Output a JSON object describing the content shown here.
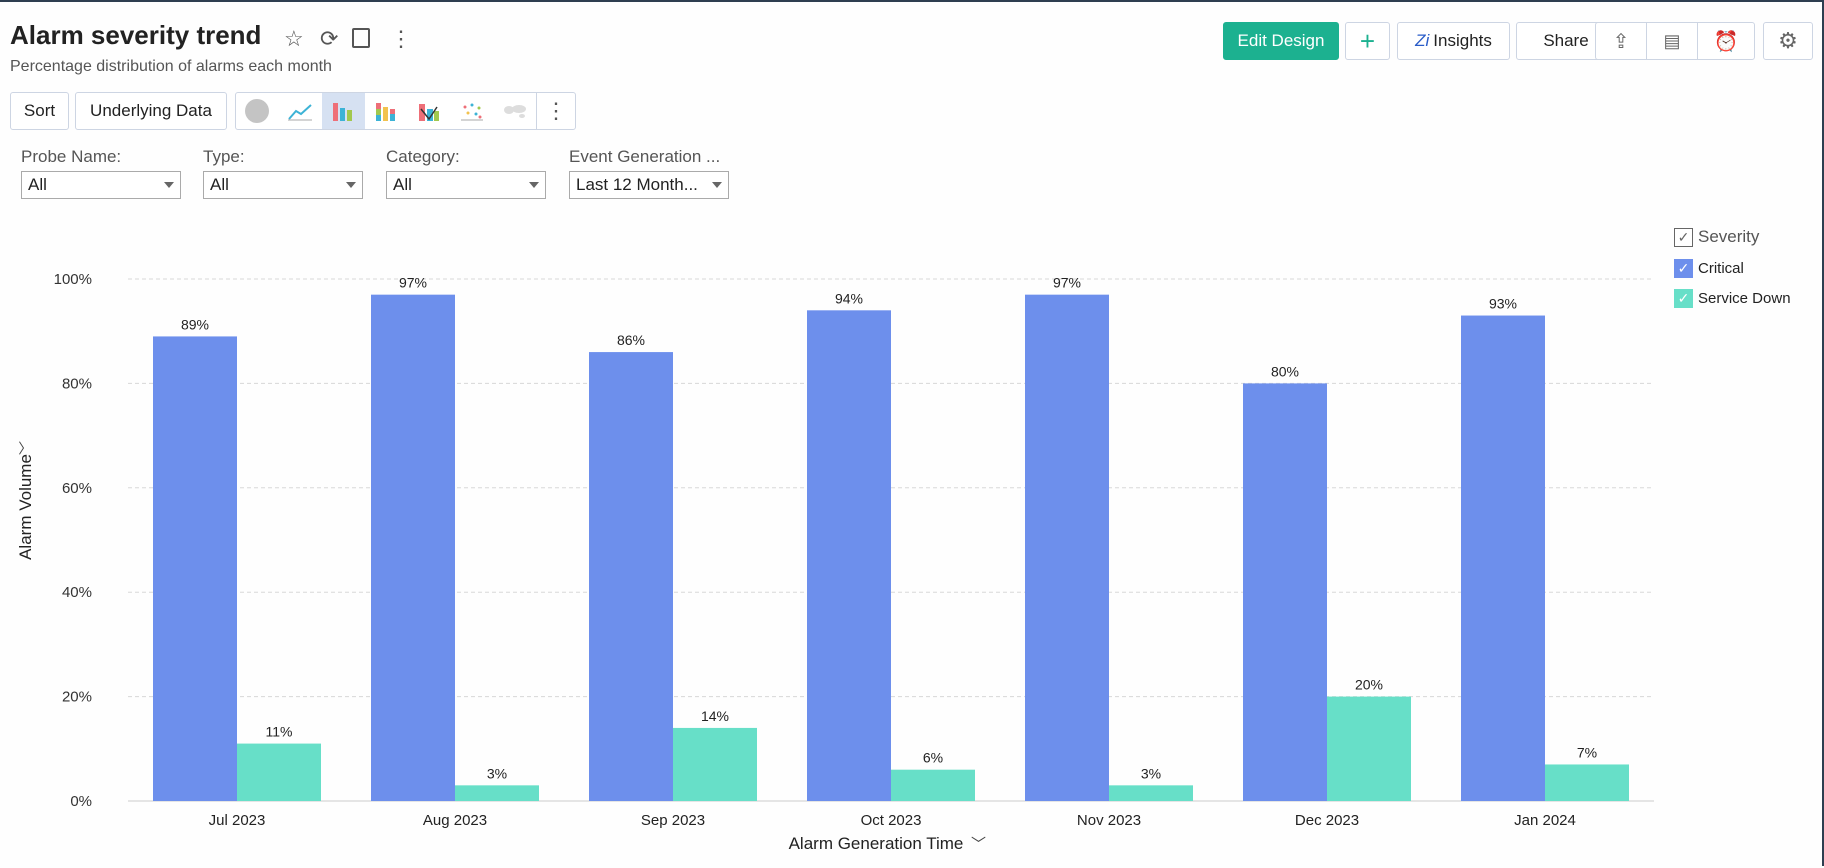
{
  "header": {
    "title": "Alarm severity trend",
    "subtitle": "Percentage distribution of alarms each month",
    "edit_design": "Edit Design",
    "add": "+",
    "insights": "Insights",
    "share": "Share"
  },
  "toolbar": {
    "sort": "Sort",
    "underlying_data": "Underlying Data",
    "chart_types": [
      "pie",
      "line",
      "bar",
      "stacked-bar",
      "combo",
      "scatter",
      "map"
    ],
    "active_chart_type": "bar"
  },
  "filters": [
    {
      "label": "Probe Name:",
      "value": "All"
    },
    {
      "label": "Type:",
      "value": "All"
    },
    {
      "label": "Category:",
      "value": "All"
    },
    {
      "label": "Event Generation ...",
      "value": "Last 12 Month..."
    }
  ],
  "legend": {
    "title": "Severity",
    "items": [
      {
        "label": "Critical",
        "color": "#6d8fec"
      },
      {
        "label": "Service Down",
        "color": "#67dfc8"
      }
    ]
  },
  "chart_data": {
    "type": "bar",
    "xlabel": "Alarm Generation Time",
    "ylabel": "Alarm Volume",
    "ylim": [
      0,
      100
    ],
    "yticks": [
      "0%",
      "20%",
      "40%",
      "60%",
      "80%",
      "100%"
    ],
    "grid": true,
    "legend_position": "right",
    "categories": [
      "Jul 2023",
      "Aug 2023",
      "Sep 2023",
      "Oct 2023",
      "Nov 2023",
      "Dec 2023",
      "Jan 2024"
    ],
    "series": [
      {
        "name": "Critical",
        "color": "#6d8fec",
        "values": [
          89,
          97,
          86,
          94,
          97,
          80,
          93
        ]
      },
      {
        "name": "Service Down",
        "color": "#67dfc8",
        "values": [
          11,
          3,
          14,
          6,
          3,
          20,
          7
        ]
      }
    ]
  }
}
